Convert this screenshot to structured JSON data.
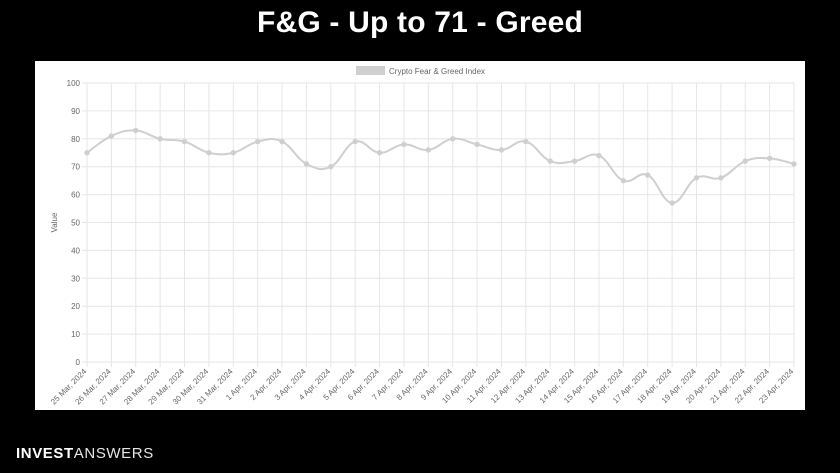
{
  "slide": {
    "title": "F&G - Up to 71 - Greed"
  },
  "brand": {
    "part1": "INVEST",
    "part2": "ANSWERS"
  },
  "colors": {
    "background": "#000000",
    "panel": "#ffffff",
    "line": "#cfcfcf",
    "grid": "#e6e6e6",
    "axis_text": "#666666"
  },
  "chart_data": {
    "type": "line",
    "title": "",
    "xlabel": "",
    "ylabel": "Value",
    "ylim": [
      0,
      100
    ],
    "yticks": [
      0,
      10,
      20,
      30,
      40,
      50,
      60,
      70,
      80,
      90,
      100
    ],
    "grid": true,
    "legend_position": "top-center",
    "categories": [
      "25 Mar, 2024",
      "26 Mar, 2024",
      "27 Mar, 2024",
      "28 Mar, 2024",
      "29 Mar, 2024",
      "30 Mar, 2024",
      "31 Mar, 2024",
      "1 Apr, 2024",
      "2 Apr, 2024",
      "3 Apr, 2024",
      "4 Apr, 2024",
      "5 Apr, 2024",
      "6 Apr, 2024",
      "7 Apr, 2024",
      "8 Apr, 2024",
      "9 Apr, 2024",
      "10 Apr, 2024",
      "11 Apr, 2024",
      "12 Apr, 2024",
      "13 Apr, 2024",
      "14 Apr, 2024",
      "15 Apr, 2024",
      "16 Apr, 2024",
      "17 Apr, 2024",
      "18 Apr, 2024",
      "19 Apr, 2024",
      "20 Apr, 2024",
      "21 Apr, 2024",
      "22 Apr, 2024",
      "23 Apr, 2024"
    ],
    "series": [
      {
        "name": "Crypto Fear & Greed Index",
        "values": [
          75,
          81,
          83,
          80,
          79,
          75,
          75,
          79,
          79,
          71,
          70,
          79,
          75,
          78,
          76,
          80,
          78,
          76,
          79,
          72,
          72,
          74,
          65,
          67,
          57,
          66,
          66,
          72,
          73,
          71
        ]
      }
    ]
  }
}
